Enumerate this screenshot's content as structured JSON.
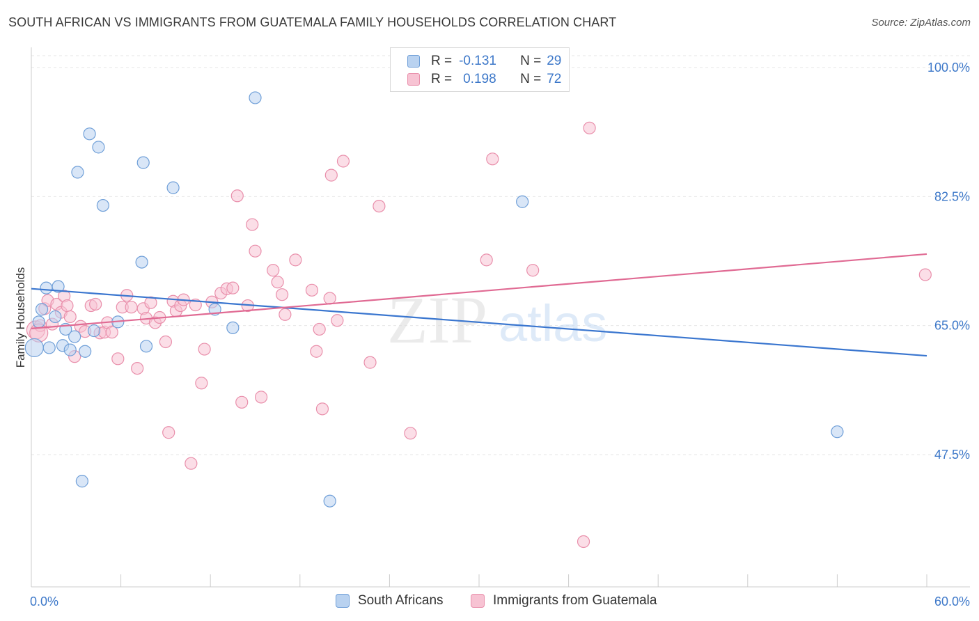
{
  "header": {
    "title": "SOUTH AFRICAN VS IMMIGRANTS FROM GUATEMALA FAMILY HOUSEHOLDS CORRELATION CHART",
    "source": "Source: ZipAtlas.com"
  },
  "watermark": {
    "part1": "ZIP",
    "part2": "atlas"
  },
  "legend_top": {
    "rows": [
      {
        "r_label": "R =",
        "r_value": "-0.131",
        "n_label": "N =",
        "n_value": "29"
      },
      {
        "r_label": "R =",
        "r_value": "0.198",
        "n_label": "N =",
        "n_value": "72"
      }
    ]
  },
  "colors": {
    "blue_fill": "#b9d2f0",
    "blue_stroke": "#6f9fd8",
    "blue_line": "#3a76cf",
    "pink_fill": "#f7c3d3",
    "pink_stroke": "#e98fab",
    "pink_line": "#e06a93",
    "tick_label": "#3d78c9",
    "grid": "#e6e6e6"
  },
  "chart_data": {
    "type": "scatter",
    "title": "SOUTH AFRICAN VS IMMIGRANTS FROM GUATEMALA FAMILY HOUSEHOLDS CORRELATION CHART",
    "xlabel": "",
    "ylabel": "Family Households",
    "xlim": [
      0,
      60
    ],
    "ylim": [
      30,
      103
    ],
    "x_tick_labels": [
      "0.0%",
      "60.0%"
    ],
    "y_ticks": [
      {
        "value": 47.5,
        "label": "47.5%"
      },
      {
        "value": 65.0,
        "label": "65.0%"
      },
      {
        "value": 82.5,
        "label": "82.5%"
      },
      {
        "value": 100.0,
        "label": "100.0%"
      }
    ],
    "grid": true,
    "legend": [
      "South Africans",
      "Immigrants from Guatemala"
    ],
    "series": [
      {
        "name": "South Africans",
        "r": -0.131,
        "n": 29,
        "trend": {
          "x": [
            0,
            60
          ],
          "y": [
            70.0,
            60.9
          ]
        },
        "points": [
          [
            0.2,
            62.0
          ],
          [
            0.5,
            65.5
          ],
          [
            0.7,
            67.2
          ],
          [
            1.0,
            70.1
          ],
          [
            1.2,
            62.0
          ],
          [
            1.6,
            66.2
          ],
          [
            1.8,
            70.3
          ],
          [
            2.1,
            62.3
          ],
          [
            2.3,
            64.5
          ],
          [
            2.6,
            61.7
          ],
          [
            2.9,
            63.5
          ],
          [
            3.1,
            85.8
          ],
          [
            3.4,
            43.9
          ],
          [
            3.6,
            61.5
          ],
          [
            3.9,
            91.0
          ],
          [
            4.5,
            89.2
          ],
          [
            4.2,
            64.3
          ],
          [
            4.8,
            81.3
          ],
          [
            5.8,
            65.5
          ],
          [
            7.5,
            87.1
          ],
          [
            7.4,
            73.6
          ],
          [
            7.7,
            62.2
          ],
          [
            9.5,
            83.7
          ],
          [
            12.3,
            67.2
          ],
          [
            13.5,
            64.7
          ],
          [
            15.0,
            95.9
          ],
          [
            20.0,
            41.2
          ],
          [
            32.9,
            81.8
          ],
          [
            54.0,
            50.6
          ]
        ]
      },
      {
        "name": "Immigrants from Guatemala",
        "r": 0.198,
        "n": 72,
        "trend": {
          "x": [
            0,
            60
          ],
          "y": [
            64.6,
            74.7
          ]
        },
        "points": [
          [
            0.3,
            64.4
          ],
          [
            0.6,
            65.0
          ],
          [
            0.9,
            67.3
          ],
          [
            1.1,
            68.4
          ],
          [
            1.4,
            65.2
          ],
          [
            1.7,
            67.9
          ],
          [
            2.0,
            66.8
          ],
          [
            2.2,
            69.0
          ],
          [
            2.4,
            67.7
          ],
          [
            2.6,
            66.2
          ],
          [
            2.9,
            60.8
          ],
          [
            3.3,
            64.9
          ],
          [
            3.6,
            64.2
          ],
          [
            4.0,
            67.7
          ],
          [
            4.3,
            67.9
          ],
          [
            4.6,
            64.0
          ],
          [
            4.9,
            64.1
          ],
          [
            5.1,
            65.4
          ],
          [
            5.4,
            64.1
          ],
          [
            5.8,
            60.5
          ],
          [
            6.1,
            67.5
          ],
          [
            6.4,
            69.1
          ],
          [
            6.7,
            67.5
          ],
          [
            7.1,
            59.2
          ],
          [
            7.5,
            67.3
          ],
          [
            7.7,
            66.0
          ],
          [
            8.0,
            68.1
          ],
          [
            8.3,
            65.4
          ],
          [
            8.6,
            66.1
          ],
          [
            9.0,
            62.8
          ],
          [
            9.2,
            50.5
          ],
          [
            9.5,
            68.3
          ],
          [
            9.7,
            67.0
          ],
          [
            10.0,
            67.7
          ],
          [
            10.2,
            68.5
          ],
          [
            10.7,
            46.3
          ],
          [
            11.0,
            67.8
          ],
          [
            11.4,
            57.2
          ],
          [
            11.6,
            61.8
          ],
          [
            12.1,
            68.2
          ],
          [
            12.7,
            69.4
          ],
          [
            13.1,
            70.0
          ],
          [
            13.5,
            70.1
          ],
          [
            13.8,
            82.6
          ],
          [
            14.1,
            54.6
          ],
          [
            14.5,
            67.7
          ],
          [
            14.8,
            78.7
          ],
          [
            15.0,
            75.1
          ],
          [
            15.4,
            55.3
          ],
          [
            16.2,
            72.5
          ],
          [
            16.8,
            69.2
          ],
          [
            16.5,
            70.9
          ],
          [
            17.0,
            66.5
          ],
          [
            17.7,
            73.9
          ],
          [
            18.8,
            69.8
          ],
          [
            19.3,
            64.5
          ],
          [
            19.1,
            61.5
          ],
          [
            19.5,
            53.7
          ],
          [
            20.0,
            68.7
          ],
          [
            20.5,
            65.7
          ],
          [
            20.9,
            87.3
          ],
          [
            20.1,
            85.4
          ],
          [
            22.7,
            60.0
          ],
          [
            23.3,
            81.2
          ],
          [
            25.4,
            50.4
          ],
          [
            30.5,
            73.9
          ],
          [
            30.9,
            87.6
          ],
          [
            33.6,
            72.5
          ],
          [
            37.4,
            91.8
          ],
          [
            37.0,
            35.7
          ],
          [
            59.9,
            71.9
          ],
          [
            0.5,
            64.0
          ]
        ]
      }
    ]
  }
}
